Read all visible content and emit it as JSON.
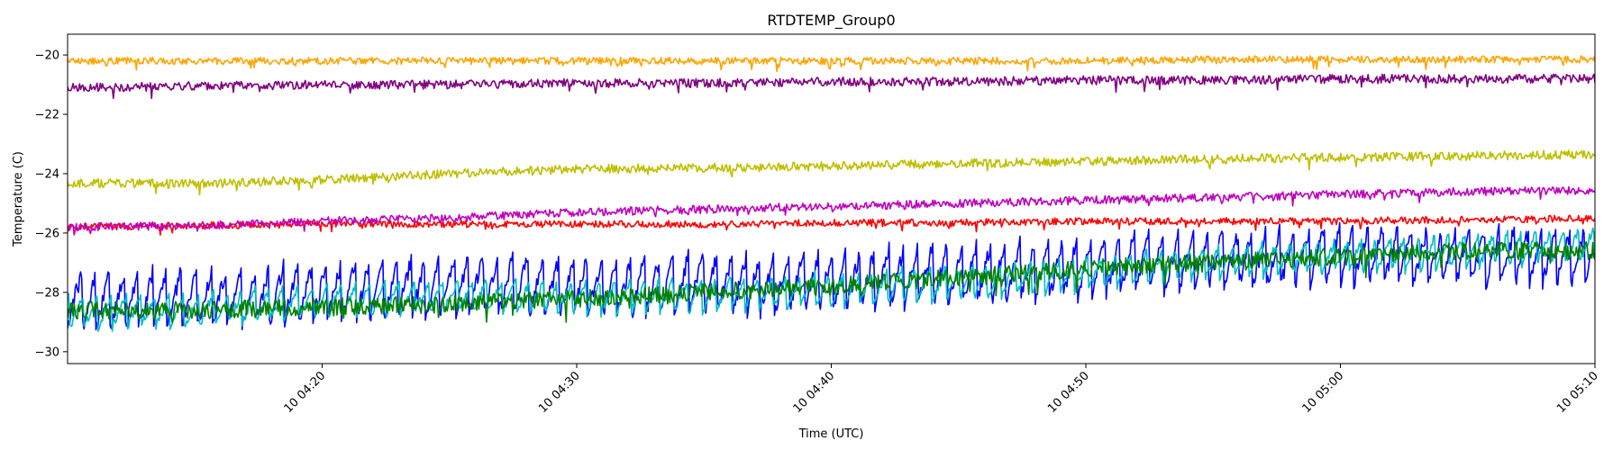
{
  "chart_data": {
    "type": "line",
    "title": "RTDTEMP_Group0",
    "xlabel": "Time (UTC)",
    "ylabel": "Temperature (C)",
    "xlim": [
      "10 04:10:00",
      "10 05:10:00"
    ],
    "ylim": [
      -30.4,
      -19.3
    ],
    "x_ticks": [
      {
        "value": "10 04:20:00",
        "label": "10 04:20"
      },
      {
        "value": "10 04:30:00",
        "label": "10 04:30"
      },
      {
        "value": "10 04:40:00",
        "label": "10 04:40"
      },
      {
        "value": "10 04:50:00",
        "label": "10 04:50"
      },
      {
        "value": "10 05:00:00",
        "label": "10 05:00"
      },
      {
        "value": "10 05:10:00",
        "label": "10 05:10"
      }
    ],
    "y_ticks": [
      -20,
      -22,
      -24,
      -26,
      -28,
      -30
    ],
    "grid": false,
    "legend": "none",
    "x": [
      "10 04:10:00",
      "10 04:15:00",
      "10 04:20:00",
      "10 04:25:00",
      "10 04:30:00",
      "10 04:35:00",
      "10 04:40:00",
      "10 04:45:00",
      "10 04:50:00",
      "10 04:55:00",
      "10 05:00:00",
      "10 05:05:00",
      "10 05:10:00"
    ],
    "series": [
      {
        "color": "#ffa500",
        "noise": 0.12,
        "values": [
          -20.2,
          -20.2,
          -20.2,
          -20.2,
          -20.2,
          -20.2,
          -20.2,
          -20.2,
          -20.2,
          -20.15,
          -20.15,
          -20.15,
          -20.15
        ]
      },
      {
        "color": "#800080",
        "noise": 0.15,
        "values": [
          -21.1,
          -21.05,
          -21.0,
          -21.0,
          -20.95,
          -20.95,
          -20.9,
          -20.9,
          -20.85,
          -20.85,
          -20.8,
          -20.8,
          -20.8
        ]
      },
      {
        "color": "#bfbf00",
        "noise": 0.15,
        "values": [
          -24.3,
          -24.35,
          -24.2,
          -24.0,
          -23.85,
          -23.8,
          -23.75,
          -23.65,
          -23.6,
          -23.5,
          -23.45,
          -23.4,
          -23.35
        ]
      },
      {
        "color": "#ff0000",
        "noise": 0.12,
        "values": [
          -25.8,
          -25.75,
          -25.7,
          -25.7,
          -25.7,
          -25.7,
          -25.65,
          -25.65,
          -25.6,
          -25.6,
          -25.6,
          -25.55,
          -25.5
        ]
      },
      {
        "color": "#bf00bf",
        "noise": 0.14,
        "values": [
          -25.8,
          -25.75,
          -25.6,
          -25.5,
          -25.3,
          -25.2,
          -25.1,
          -25.0,
          -24.9,
          -24.8,
          -24.7,
          -24.6,
          -24.55
        ]
      },
      {
        "color": "#0000ff",
        "noise": 0.9,
        "values": [
          -28.3,
          -28.2,
          -28.0,
          -27.8,
          -27.8,
          -27.7,
          -27.6,
          -27.4,
          -27.2,
          -26.9,
          -26.8,
          -26.8,
          -26.9
        ]
      },
      {
        "color": "#00bfbf",
        "noise": 0.5,
        "values": [
          -28.7,
          -28.6,
          -28.3,
          -28.1,
          -28.2,
          -28.1,
          -27.9,
          -27.7,
          -27.4,
          -27.0,
          -26.8,
          -26.6,
          -26.4
        ]
      },
      {
        "color": "#008000",
        "noise": 0.3,
        "values": [
          -28.6,
          -28.6,
          -28.5,
          -28.4,
          -28.2,
          -28.0,
          -27.8,
          -27.5,
          -27.2,
          -27.0,
          -26.8,
          -26.6,
          -26.6
        ]
      }
    ]
  }
}
